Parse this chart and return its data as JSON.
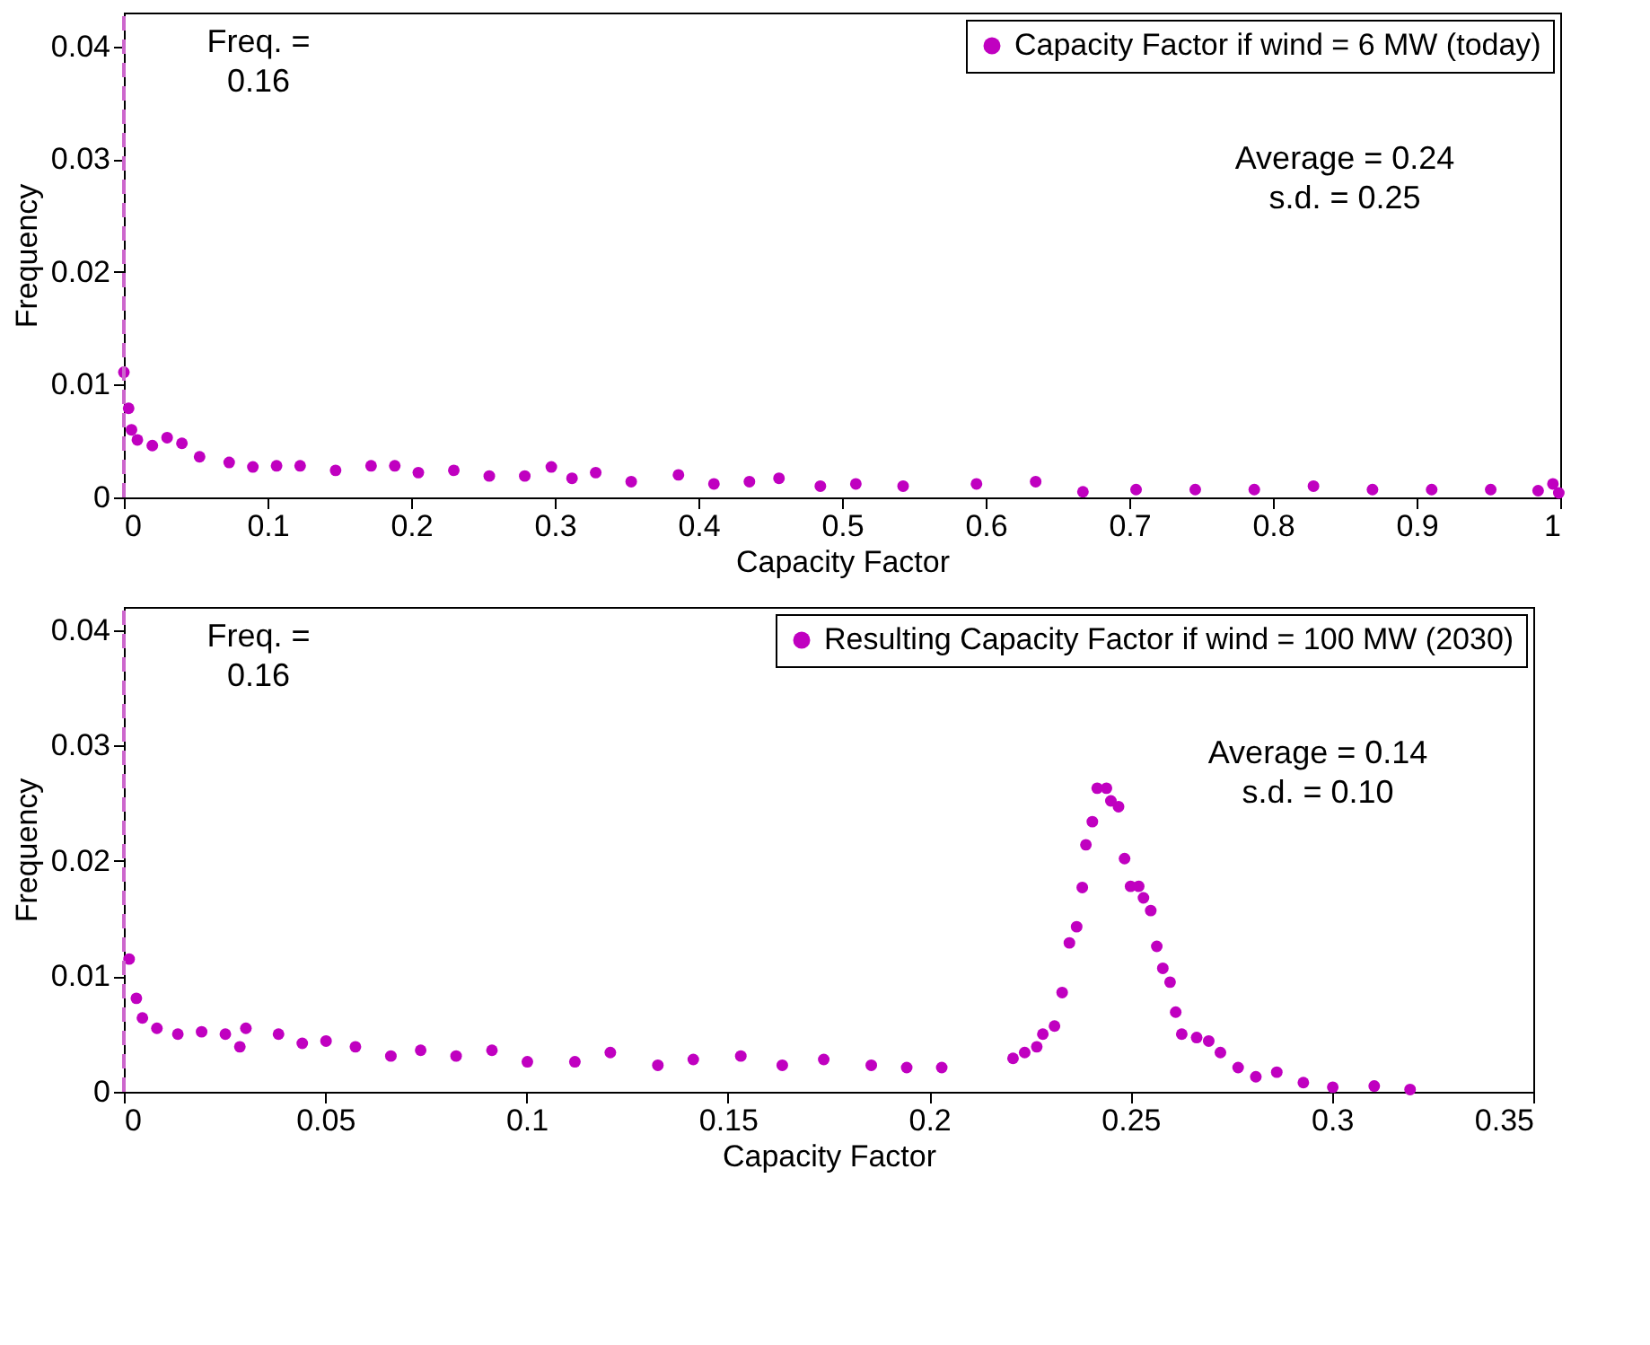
{
  "chart_data": [
    {
      "type": "scatter",
      "xlabel": "Capacity Factor",
      "ylabel": "Frequency",
      "xlim": [
        0,
        1
      ],
      "ylim": [
        0,
        0.043
      ],
      "xticks": [
        0,
        0.1,
        0.2,
        0.3,
        0.4,
        0.5,
        0.6,
        0.7,
        0.8,
        0.9,
        1
      ],
      "yticks": [
        0,
        0.01,
        0.02,
        0.03,
        0.04
      ],
      "grid": false,
      "legend": "top right",
      "marker": "circle",
      "series": [
        {
          "name": "Capacity Factor if wind = 6 MW (today)",
          "color": "#c000c0",
          "x": [
            0,
            0.0033,
            0.0053,
            0.0094,
            0.0198,
            0.0301,
            0.0404,
            0.0527,
            0.0733,
            0.0898,
            0.1063,
            0.1227,
            0.1474,
            0.1721,
            0.1886,
            0.205,
            0.2297,
            0.2544,
            0.2791,
            0.2976,
            0.312,
            0.3285,
            0.3532,
            0.3861,
            0.4108,
            0.4355,
            0.4561,
            0.4849,
            0.5096,
            0.5425,
            0.5936,
            0.6348,
            0.6677,
            0.7047,
            0.7459,
            0.787,
            0.8282,
            0.8693,
            0.9105,
            0.9516,
            0.9846,
            0.9949,
            0.999
          ],
          "values": [
            0.0111,
            0.0079,
            0.006,
            0.0051,
            0.0046,
            0.0053,
            0.0048,
            0.0036,
            0.0031,
            0.0027,
            0.0028,
            0.0028,
            0.0024,
            0.0028,
            0.0028,
            0.0022,
            0.0024,
            0.0019,
            0.0019,
            0.0027,
            0.0017,
            0.0022,
            0.0014,
            0.002,
            0.0012,
            0.0014,
            0.0017,
            0.001,
            0.0012,
            0.001,
            0.0012,
            0.0014,
            0.0005,
            0.0007,
            0.0007,
            0.0007,
            0.001,
            0.0007,
            0.0007,
            0.0007,
            0.0006,
            0.0012,
            0.0004
          ]
        }
      ],
      "ref_lines": [
        {
          "axis": "x",
          "value": 0,
          "color": "#cc66cc",
          "line_style": "dashed"
        }
      ],
      "annotations": [
        "Freq. =\n0.16",
        "Average = 0.24\ns.d. = 0.25"
      ]
    },
    {
      "type": "scatter",
      "xlabel": "Capacity Factor",
      "ylabel": "Frequency",
      "xlim": [
        0,
        0.35
      ],
      "ylim": [
        0,
        0.042
      ],
      "xticks": [
        0,
        0.05,
        0.1,
        0.15,
        0.2,
        0.25,
        0.3,
        0.35
      ],
      "yticks": [
        0,
        0.01,
        0.02,
        0.03,
        0.04
      ],
      "grid": false,
      "legend": "top right",
      "marker": "circle",
      "series": [
        {
          "name": "Resulting Capacity Factor if wind = 100 MW (2030)",
          "color": "#c000c0",
          "x": [
            0.0013,
            0.0031,
            0.0046,
            0.0082,
            0.0134,
            0.0193,
            0.0252,
            0.0288,
            0.0303,
            0.0384,
            0.0443,
            0.0502,
            0.0575,
            0.0663,
            0.0737,
            0.0825,
            0.0914,
            0.1002,
            0.112,
            0.1208,
            0.1326,
            0.1414,
            0.1532,
            0.1635,
            0.1738,
            0.1856,
            0.1944,
            0.2031,
            0.2208,
            0.2237,
            0.2267,
            0.2282,
            0.2311,
            0.233,
            0.2348,
            0.2366,
            0.238,
            0.2389,
            0.2405,
            0.2417,
            0.244,
            0.2451,
            0.247,
            0.2485,
            0.25,
            0.252,
            0.2532,
            0.255,
            0.2565,
            0.258,
            0.2598,
            0.2612,
            0.2627,
            0.2664,
            0.2694,
            0.2723,
            0.2767,
            0.2811,
            0.2863,
            0.2929,
            0.3002,
            0.3105,
            0.3194
          ],
          "values": [
            0.0115,
            0.0081,
            0.0064,
            0.0055,
            0.005,
            0.0052,
            0.005,
            0.0039,
            0.0055,
            0.005,
            0.0042,
            0.0044,
            0.0039,
            0.0031,
            0.0036,
            0.0031,
            0.0036,
            0.0026,
            0.0026,
            0.0034,
            0.0023,
            0.0028,
            0.0031,
            0.0023,
            0.0028,
            0.0023,
            0.0021,
            0.0021,
            0.0029,
            0.0034,
            0.0039,
            0.005,
            0.0057,
            0.0086,
            0.0129,
            0.0143,
            0.0177,
            0.0214,
            0.0234,
            0.0263,
            0.0263,
            0.0252,
            0.0247,
            0.0202,
            0.0178,
            0.0178,
            0.0168,
            0.0157,
            0.0126,
            0.0107,
            0.0095,
            0.0069,
            0.005,
            0.0047,
            0.0044,
            0.0034,
            0.0021,
            0.0013,
            0.0017,
            0.0008,
            0.0004,
            0.0005,
            0.0002
          ]
        }
      ],
      "ref_lines": [
        {
          "axis": "x",
          "value": 0,
          "color": "#cc66cc",
          "line_style": "dashed"
        }
      ],
      "annotations": [
        "Freq. =\n0.16",
        "Average = 0.14\ns.d. = 0.10"
      ]
    }
  ]
}
